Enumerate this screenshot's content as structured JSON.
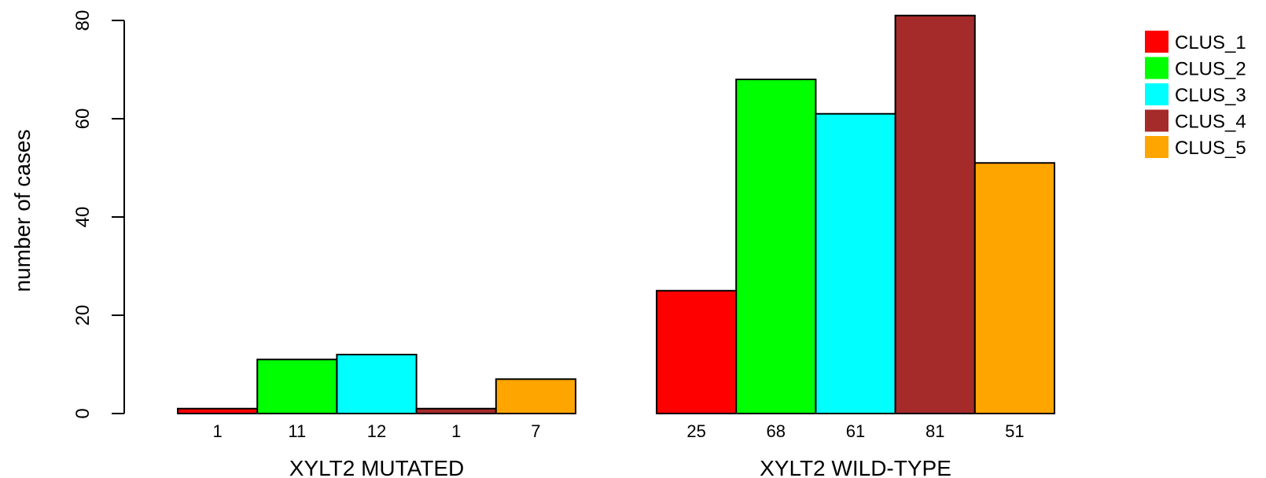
{
  "chart_data": {
    "type": "bar",
    "title": "",
    "xlabel": "",
    "ylabel": "number of cases",
    "ylim": [
      0,
      80
    ],
    "yticks": [
      0,
      20,
      40,
      60,
      80
    ],
    "grid": false,
    "legend_position": "top-right",
    "groups": [
      "XYLT2 MUTATED",
      "XYLT2 WILD-TYPE"
    ],
    "series": [
      {
        "name": "CLUS_1",
        "color": "#ff0000",
        "values": [
          1,
          25
        ]
      },
      {
        "name": "CLUS_2",
        "color": "#00ff00",
        "values": [
          11,
          68
        ]
      },
      {
        "name": "CLUS_3",
        "color": "#00ffff",
        "values": [
          12,
          61
        ]
      },
      {
        "name": "CLUS_4",
        "color": "#a52a2a",
        "values": [
          1,
          81
        ]
      },
      {
        "name": "CLUS_5",
        "color": "#ffa500",
        "values": [
          7,
          51
        ]
      }
    ]
  }
}
